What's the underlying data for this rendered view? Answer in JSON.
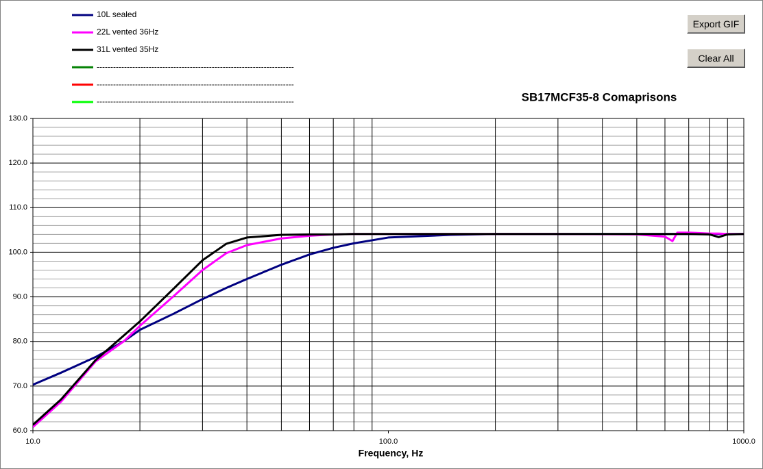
{
  "chart_data": {
    "type": "line",
    "title": "SB17MCF35-8  Comaprisons",
    "x_label": "Frequency,  Hz",
    "x_log": true,
    "x": [
      10,
      12,
      15,
      18,
      20,
      25,
      30,
      35,
      40,
      50,
      60,
      70,
      80,
      100,
      150,
      200,
      300,
      500,
      600,
      630,
      650,
      700,
      800,
      850,
      900,
      1000
    ],
    "series": [
      {
        "name": "10L sealed",
        "color": "#000080",
        "values": [
          70.3,
          73.0,
          76.5,
          80.0,
          82.6,
          86.3,
          89.5,
          92.0,
          94.0,
          97.2,
          99.5,
          101.0,
          102.0,
          103.3,
          103.9,
          104.1,
          104.1,
          104.1,
          104.1,
          104.1,
          104.1,
          104.1,
          104.1,
          104.1,
          104.1,
          104.1
        ]
      },
      {
        "name": "22L vented 36Hz",
        "color": "#ff00ff",
        "values": [
          60.8,
          66.5,
          75.5,
          80.0,
          83.5,
          90.3,
          96.0,
          99.8,
          101.6,
          103.1,
          103.7,
          104.0,
          104.1,
          104.1,
          104.1,
          104.1,
          104.1,
          104.0,
          103.5,
          102.5,
          104.4,
          104.4,
          104.2,
          104.2,
          104.1,
          104.1
        ]
      },
      {
        "name": "31L vented 35Hz",
        "color": "#000000",
        "values": [
          61.3,
          67.0,
          75.8,
          81.3,
          84.5,
          92.0,
          98.2,
          101.9,
          103.3,
          103.9,
          104.0,
          104.0,
          104.1,
          104.1,
          104.1,
          104.1,
          104.1,
          104.1,
          104.1,
          104.1,
          104.1,
          104.1,
          104.0,
          103.4,
          104.0,
          104.1
        ]
      }
    ],
    "unused_legend_entries": [
      {
        "name": "------------------------------------------------------------------------",
        "color": "#008000"
      },
      {
        "name": "------------------------------------------------------------------------",
        "color": "#ff0000"
      },
      {
        "name": "------------------------------------------------------------------------",
        "color": "#00ff00"
      }
    ],
    "xlim": [
      10,
      1000
    ],
    "xticks": [
      {
        "value": 10,
        "label": "10.0"
      },
      {
        "value": 100,
        "label": "100.0"
      },
      {
        "value": 1000,
        "label": "1000.0"
      }
    ],
    "xminorticks": [
      20,
      30,
      40,
      50,
      60,
      70,
      80,
      90,
      200,
      300,
      400,
      500,
      600,
      700,
      800,
      900
    ],
    "ylim": [
      60,
      130
    ],
    "yticks": [
      {
        "value": 60,
        "label": "60.0"
      },
      {
        "value": 70,
        "label": "70.0"
      },
      {
        "value": 80,
        "label": "80.0"
      },
      {
        "value": 90,
        "label": "90.0"
      },
      {
        "value": 100,
        "label": "100.0"
      },
      {
        "value": 110,
        "label": "110.0"
      },
      {
        "value": 120,
        "label": "120.0"
      },
      {
        "value": 130,
        "label": "130.0"
      }
    ],
    "yminorticks": [
      62,
      64,
      66,
      68,
      72,
      74,
      76,
      78,
      82,
      84,
      86,
      88,
      92,
      94,
      96,
      98,
      102,
      104,
      106,
      108,
      112,
      114,
      116,
      118,
      122,
      124,
      126,
      128
    ],
    "grid": true,
    "buttons": [
      "Export GIF",
      "Clear All"
    ]
  }
}
